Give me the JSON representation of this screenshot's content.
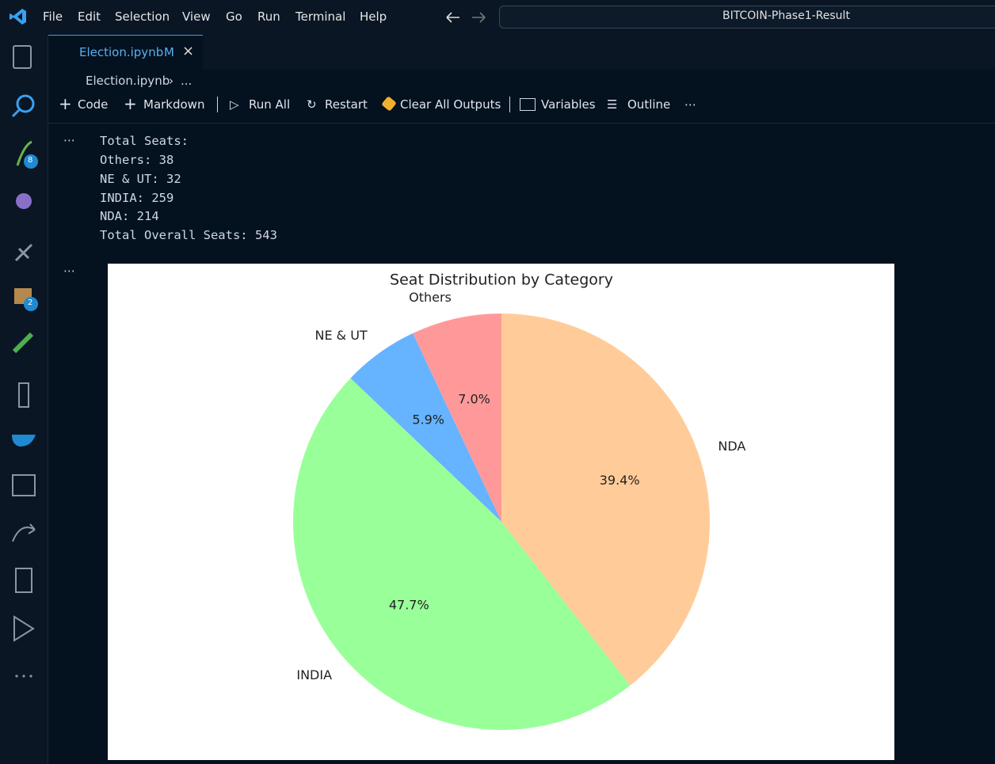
{
  "menu": [
    "File",
    "Edit",
    "Selection",
    "View",
    "Go",
    "Run",
    "Terminal",
    "Help"
  ],
  "search": "BITCOIN-Phase1-Result",
  "badges": [
    "8",
    "2"
  ],
  "tab": {
    "name": "Election.ipynb",
    "status": "M"
  },
  "breadcrumb": {
    "file": "Election.ipynb",
    "more": "..."
  },
  "toolbar": [
    "Code",
    "Markdown",
    "Run All",
    "Restart",
    "Clear All Outputs",
    "Variables",
    "Outline"
  ],
  "output": [
    "Total Seats:",
    "Others: 38",
    "NE & UT: 32",
    "INDIA: 259",
    "NDA: 214",
    "Total Overall Seats: 543"
  ],
  "chart_data": {
    "type": "pie",
    "title": "Seat Distribution by Category",
    "categories": [
      "Others",
      "NE & UT",
      "INDIA",
      "NDA"
    ],
    "values": [
      7.0,
      5.9,
      47.7,
      39.4
    ],
    "value_labels": [
      "7.0%",
      "5.9%",
      "47.7%",
      "39.4%"
    ],
    "colors": [
      "#ff9999",
      "#66b3ff",
      "#99ff99",
      "#ffcc99"
    ]
  }
}
